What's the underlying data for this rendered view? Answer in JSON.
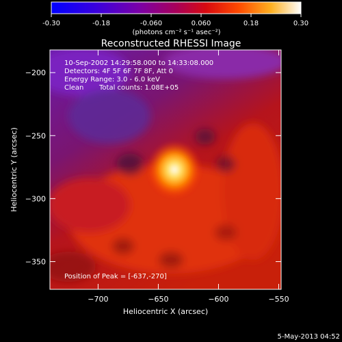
{
  "colorbar": {
    "tick_labels": [
      "-0.30",
      "-0.18",
      "-0.060",
      "0.060",
      "0.18",
      "0.30"
    ],
    "range": [
      -0.3,
      0.3
    ],
    "unit_label": "(photons cm⁻² s⁻¹ asec⁻²)"
  },
  "chart_data": {
    "type": "heatmap",
    "title": "Reconstructed RHESSI Image",
    "xlabel": "Heliocentric X (arcsec)",
    "ylabel": "Heliocentric Y (arcsec)",
    "xlim": [
      -740,
      -548
    ],
    "ylim": [
      -372,
      -182
    ],
    "x_ticks": [
      -700,
      -650,
      -600,
      -550
    ],
    "y_ticks": [
      -350,
      -300,
      -250,
      -200
    ],
    "x_tick_labels": [
      "−700",
      "−650",
      "−600",
      "−550"
    ],
    "y_tick_labels": [
      "−350",
      "−300",
      "−250",
      "−200"
    ],
    "peak": {
      "x": -637,
      "y": -270
    },
    "annotations": {
      "time_range": "10-Sep-2002 14:29:58.000 to 14:33:08.000",
      "detectors": "Detectors: 4F 5F 6F 7F 8F, Att 0",
      "energy": "Energy Range: 3.0 - 6.0 keV",
      "method": "Clean",
      "counts": "Total counts: 1.08E+05",
      "peak_label": "Position of Peak = [-637,-270]"
    },
    "colors": {
      "background": "#000000",
      "text": "#ffffff"
    }
  },
  "footer": {
    "date": "5-May-2013 04:52"
  }
}
